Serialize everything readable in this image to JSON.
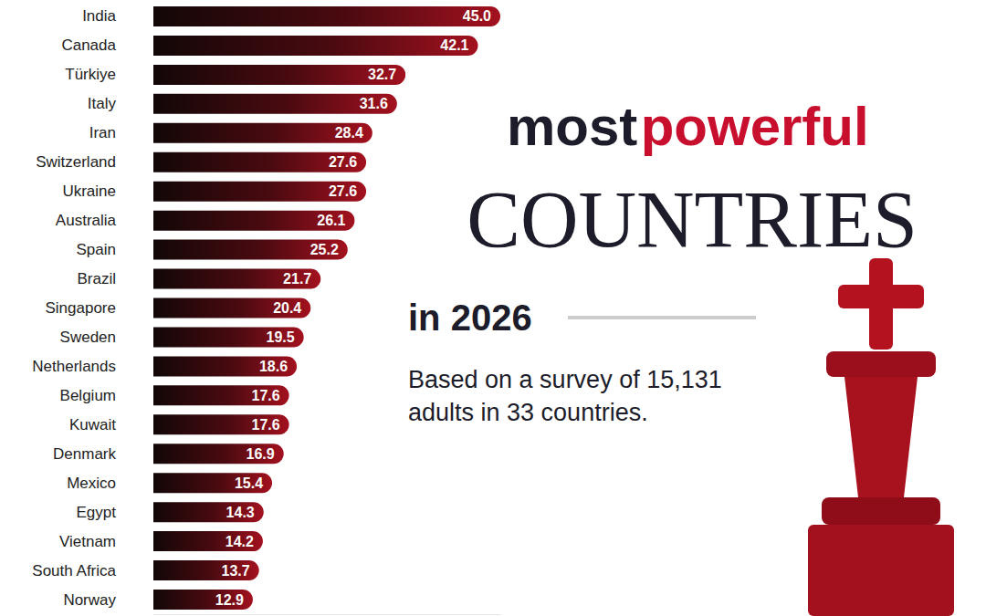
{
  "chart_data": {
    "type": "bar",
    "title": "most powerful COUNTRIES in 2026",
    "subtitle": "Based on a survey of 15,131 adults in 33 countries.",
    "orientation": "horizontal",
    "categories": [
      "India",
      "Canada",
      "Türkiye",
      "Italy",
      "Iran",
      "Switzerland",
      "Ukraine",
      "Australia",
      "Spain",
      "Brazil",
      "Singapore",
      "Sweden",
      "Netherlands",
      "Belgium",
      "Kuwait",
      "Denmark",
      "Mexico",
      "Egypt",
      "Vietnam",
      "South Africa",
      "Norway"
    ],
    "values": [
      45.0,
      42.1,
      32.7,
      31.6,
      28.4,
      27.6,
      27.6,
      26.1,
      25.2,
      21.7,
      20.4,
      19.5,
      18.6,
      17.6,
      17.6,
      16.9,
      15.4,
      14.3,
      14.2,
      13.7,
      12.9
    ],
    "value_labels": [
      "45.0",
      "42.1",
      "32.7",
      "31.6",
      "28.4",
      "27.6",
      "27.6",
      "26.1",
      "25.2",
      "21.7",
      "20.4",
      "19.5",
      "18.6",
      "17.6",
      "17.6",
      "16.9",
      "15.4",
      "14.3",
      "14.2",
      "13.7",
      "12.9"
    ],
    "color": "#a3111f",
    "xlim": [
      0,
      45
    ],
    "data_labels": true,
    "tick_labels": "y",
    "grid": false
  }
}
